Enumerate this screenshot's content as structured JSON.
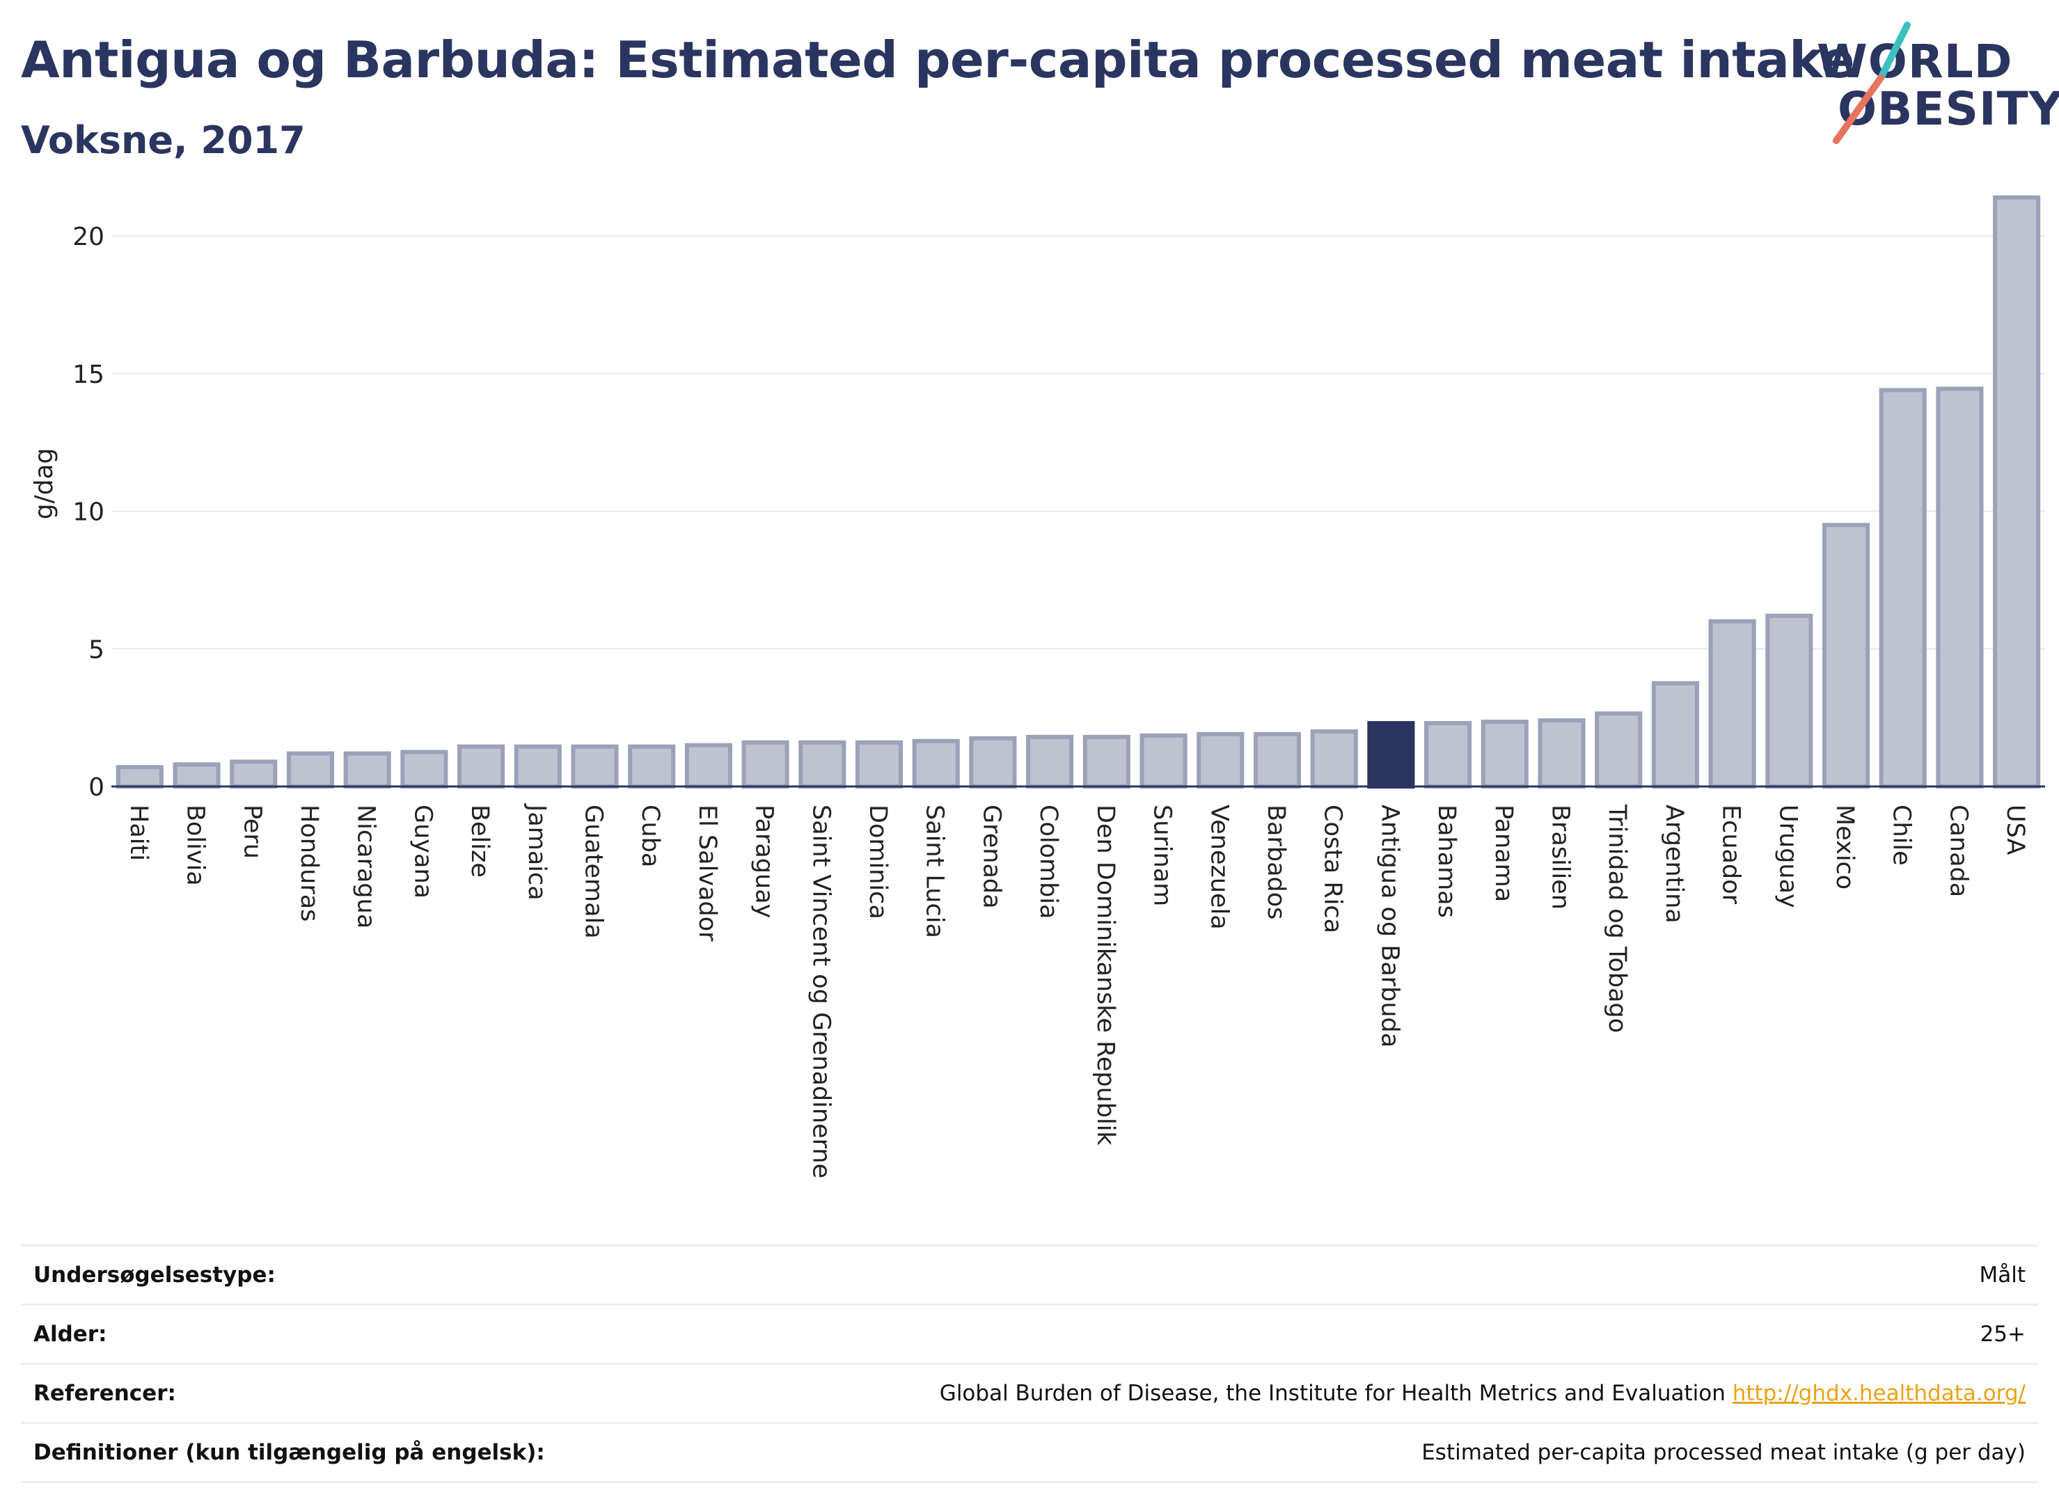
{
  "header": {
    "title": "Antigua og Barbuda: Estimated per-capita processed meat intake",
    "subtitle": "Voksne, 2017"
  },
  "logo": {
    "line1": "WORLD",
    "line2": "OBESITY",
    "accent_teal": "#3bbfc1",
    "accent_coral": "#e8735f"
  },
  "colors": {
    "bar_fill": "#bfc3d0",
    "bar_stroke": "#9aa1b8",
    "highlight": "#2a3560",
    "grid": "#e6e8ee",
    "text": "#2a3560"
  },
  "chart_data": {
    "type": "bar",
    "ylabel": "g/dag",
    "ylim": [
      0,
      22
    ],
    "yticks": [
      0,
      5,
      10,
      15,
      20
    ],
    "grid": true,
    "highlight": "Antigua og Barbuda",
    "categories": [
      "Haiti",
      "Bolivia",
      "Peru",
      "Honduras",
      "Nicaragua",
      "Guyana",
      "Belize",
      "Jamaica",
      "Guatemala",
      "Cuba",
      "El Salvador",
      "Paraguay",
      "Saint Vincent og Grenadinerne",
      "Dominica",
      "Saint Lucia",
      "Grenada",
      "Colombia",
      "Den Dominikanske Republik",
      "Surinam",
      "Venezuela",
      "Barbados",
      "Costa Rica",
      "Antigua og Barbuda",
      "Bahamas",
      "Panama",
      "Brasilien",
      "Trinidad og Tobago",
      "Argentina",
      "Ecuador",
      "Uruguay",
      "Mexico",
      "Chile",
      "Canada",
      "USA"
    ],
    "values": [
      0.7,
      0.8,
      0.9,
      1.2,
      1.2,
      1.25,
      1.45,
      1.45,
      1.45,
      1.45,
      1.5,
      1.6,
      1.6,
      1.6,
      1.65,
      1.75,
      1.8,
      1.8,
      1.85,
      1.9,
      1.9,
      2.0,
      2.3,
      2.3,
      2.35,
      2.4,
      2.65,
      3.75,
      6.0,
      6.2,
      9.5,
      14.4,
      14.45,
      21.4
    ]
  },
  "info": {
    "rows": [
      {
        "label": "Undersøgelsestype:",
        "value": "Målt"
      },
      {
        "label": "Alder:",
        "value": "25+"
      },
      {
        "label": "Referencer:",
        "value": "Global Burden of Disease, the Institute for Health Metrics and Evaluation",
        "link": "http://ghdx.healthdata.org/"
      },
      {
        "label": "Definitioner (kun tilgængelig på engelsk):",
        "value": "Estimated per-capita processed meat intake (g per day)"
      }
    ]
  }
}
